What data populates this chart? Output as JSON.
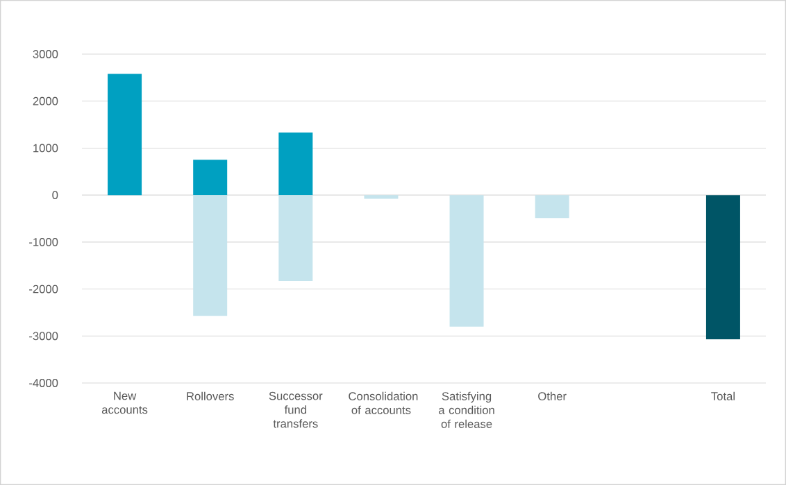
{
  "chart_data": {
    "type": "bar",
    "stacked": true,
    "categories": [
      "New accounts",
      "Rollovers",
      "Successor fund transfers",
      "Consolidation of accounts",
      "Satisfying a condition of release",
      "Other",
      null,
      "Total"
    ],
    "series": [
      {
        "color": "#00a0c1",
        "values": [
          2580,
          750,
          1330,
          null,
          null,
          null,
          null,
          null
        ]
      },
      {
        "color": "#c5e4ed",
        "values": [
          null,
          -2570,
          -1830,
          -80,
          -2800,
          -490,
          null,
          null
        ]
      },
      {
        "color": "#005566",
        "values": [
          null,
          null,
          null,
          null,
          null,
          null,
          null,
          -3070
        ]
      }
    ],
    "ylim": [
      -4000,
      3000
    ],
    "yticks": [
      -4000,
      -3000,
      -2000,
      -1000,
      0,
      1000,
      2000,
      3000
    ],
    "grid": "y"
  }
}
